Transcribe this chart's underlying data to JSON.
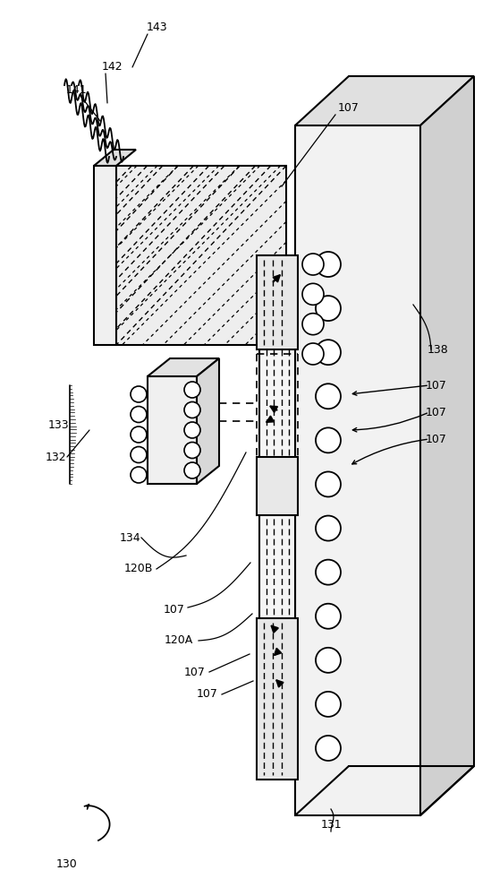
{
  "bg_color": "#ffffff",
  "fig_width": 5.49,
  "fig_height": 10.0,
  "dpi": 100
}
